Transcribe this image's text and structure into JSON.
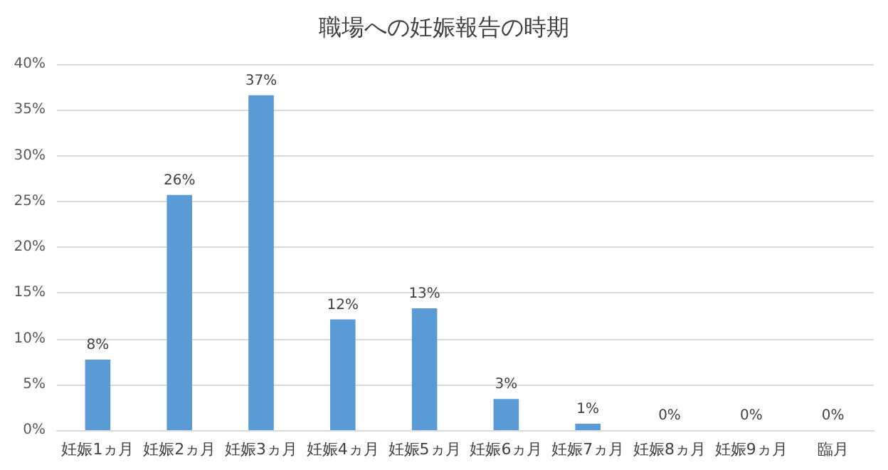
{
  "chart_data": {
    "type": "bar",
    "title": "職場への妊娠報告の時期",
    "categories": [
      "妊娠1ヵ月",
      "妊娠2ヵ月",
      "妊娠3ヵ月",
      "妊娠4ヵ月",
      "妊娠5ヵ月",
      "妊娠6ヵ月",
      "妊娠7ヵ月",
      "妊娠8ヵ月",
      "妊娠9ヵ月",
      "臨月"
    ],
    "values": [
      7.7,
      25.7,
      36.6,
      12.1,
      13.3,
      3.4,
      0.7,
      0,
      0,
      0
    ],
    "value_labels": [
      "8%",
      "26%",
      "37%",
      "12%",
      "13%",
      "3%",
      "1%",
      "0%",
      "0%",
      "0%"
    ],
    "color": "#5b9bd5",
    "ylim": [
      0,
      40
    ],
    "yticks": [
      {
        "value": 0,
        "label": "0%"
      },
      {
        "value": 5,
        "label": "5%"
      },
      {
        "value": 10,
        "label": "10%"
      },
      {
        "value": 15,
        "label": "15%"
      },
      {
        "value": 20,
        "label": "20%"
      },
      {
        "value": 25,
        "label": "25%"
      },
      {
        "value": 30,
        "label": "30%"
      },
      {
        "value": 35,
        "label": "35%"
      },
      {
        "value": 40,
        "label": "40%"
      }
    ],
    "grid": "y"
  }
}
